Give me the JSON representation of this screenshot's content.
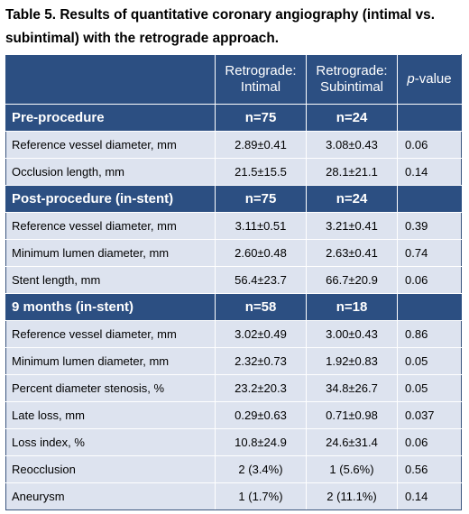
{
  "caption": "Table 5. Results of quantitative coronary angiography (intimal vs. subintimal) with the retrograde approach.",
  "header": {
    "col2_line1": "Retrograde:",
    "col2_line2": "Intimal",
    "col3_line1": "Retrograde:",
    "col3_line2": "Subintimal",
    "col4_italic": "p",
    "col4_rest": "-value"
  },
  "sections": [
    {
      "title": "Pre-procedure",
      "n_intimal": "n=75",
      "n_subintimal": "n=24",
      "rows": [
        {
          "label": "Reference vessel diameter, mm",
          "intimal": "2.89±0.41",
          "subintimal": "3.08±0.43",
          "p": "0.06"
        },
        {
          "label": "Occlusion length, mm",
          "intimal": "21.5±15.5",
          "subintimal": "28.1±21.1",
          "p": "0.14"
        }
      ]
    },
    {
      "title": "Post-procedure (in-stent)",
      "n_intimal": "n=75",
      "n_subintimal": "n=24",
      "rows": [
        {
          "label": "Reference vessel diameter, mm",
          "intimal": "3.11±0.51",
          "subintimal": "3.21±0.41",
          "p": "0.39"
        },
        {
          "label": "Minimum lumen diameter, mm",
          "intimal": "2.60±0.48",
          "subintimal": "2.63±0.41",
          "p": "0.74"
        },
        {
          "label": "Stent length, mm",
          "intimal": "56.4±23.7",
          "subintimal": "66.7±20.9",
          "p": "0.06"
        }
      ]
    },
    {
      "title": "9 months (in-stent)",
      "n_intimal": "n=58",
      "n_subintimal": "n=18",
      "rows": [
        {
          "label": "Reference vessel diameter, mm",
          "intimal": "3.02±0.49",
          "subintimal": "3.00±0.43",
          "p": "0.86"
        },
        {
          "label": "Minimum lumen diameter, mm",
          "intimal": "2.32±0.73",
          "subintimal": "1.92±0.83",
          "p": "0.05"
        },
        {
          "label": "Percent diameter stenosis, %",
          "intimal": "23.2±20.3",
          "subintimal": "34.8±26.7",
          "p": "0.05"
        },
        {
          "label": "Late loss, mm",
          "intimal": "0.29±0.63",
          "subintimal": "0.71±0.98",
          "p": "0.037"
        },
        {
          "label": "Loss index, %",
          "intimal": "10.8±24.9",
          "subintimal": "24.6±31.4",
          "p": "0.06"
        },
        {
          "label": "Reocclusion",
          "intimal": "2 (3.4%)",
          "subintimal": "1 (5.6%)",
          "p": "0.56"
        },
        {
          "label": "Aneurysm",
          "intimal": "1 (1.7%)",
          "subintimal": "2 (11.1%)",
          "p": "0.14"
        }
      ]
    }
  ],
  "colors": {
    "header_bg": "#2c4f82",
    "row_bg": "#dde3ef"
  }
}
